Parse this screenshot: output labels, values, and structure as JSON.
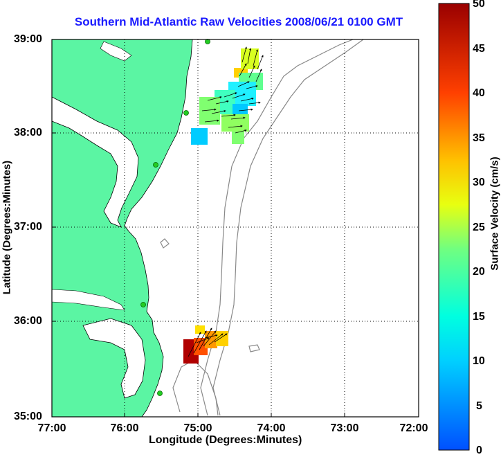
{
  "title": "Southern Mid-Atlantic Raw Velocities 2008/06/21 0100 GMT",
  "xlabel": "Longitude (Degrees:Minutes)",
  "ylabel": "Latitude (Degrees:Minutes)",
  "colorbar_label": "Surface Velocity (cm/s)",
  "colors": {
    "land": "#5bf5a3",
    "title": "#1a1aff",
    "station": "#22cc22",
    "arrow": "#000000"
  },
  "chart_data": {
    "type": "heatmap",
    "x_ticks": [
      "77:00",
      "76:00",
      "75:00",
      "74:00",
      "73:00",
      "72:00"
    ],
    "y_ticks": [
      "39:00",
      "38:00",
      "37:00",
      "36:00",
      "35:00"
    ],
    "xlim": [
      -77,
      -72
    ],
    "ylim": [
      35,
      39
    ],
    "colorbar_ticks": [
      "50",
      "45",
      "40",
      "35",
      "30",
      "25",
      "20",
      "15",
      "10",
      "5",
      "0"
    ],
    "colorbar_range": [
      0,
      50
    ],
    "grid": true,
    "colormap": "jet"
  }
}
